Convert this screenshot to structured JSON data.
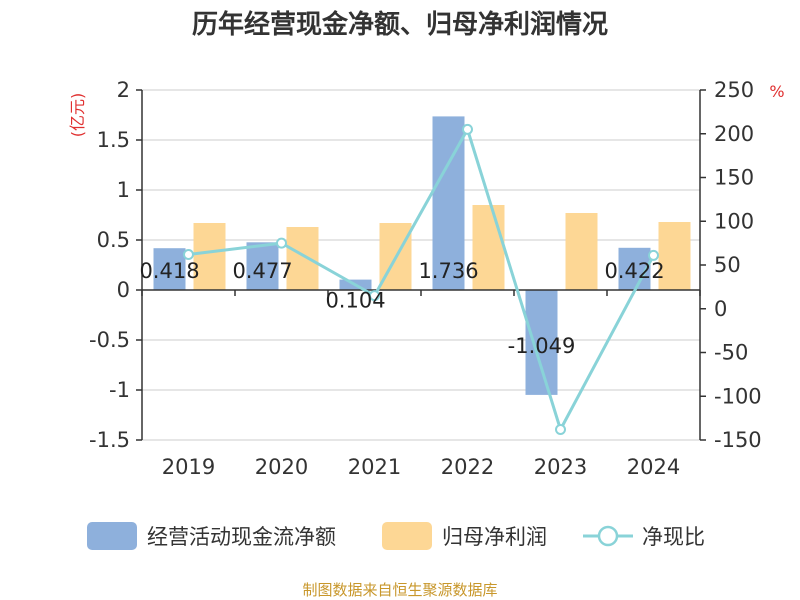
{
  "title": "历年经营现金净额、归母净利润情况",
  "source": "制图数据来自恒生聚源数据库",
  "colors": {
    "cash_flow": "#8eb0dc",
    "net_profit": "#fdd795",
    "ratio": "#89d3d8",
    "unit": "#e03030",
    "source": "#c8972b",
    "grid": "#cccccc",
    "axis": "#333333"
  },
  "chart_data": {
    "type": "bar+line",
    "categories": [
      "2019",
      "2020",
      "2021",
      "2022",
      "2023",
      "2024"
    ],
    "left_axis": {
      "unit": "(亿元)",
      "min": -1.5,
      "max": 2,
      "ticks": [
        "2",
        "1.5",
        "1",
        "0.5",
        "0",
        "-0.5",
        "-1",
        "-1.5"
      ]
    },
    "right_axis": {
      "unit": "%",
      "min": -150,
      "max": 250,
      "ticks": [
        "250",
        "200",
        "150",
        "100",
        "50",
        "0",
        "-50",
        "-100",
        "-150"
      ]
    },
    "series": [
      {
        "name": "经营活动现金流净额",
        "type": "bar",
        "axis": "left",
        "values": [
          0.418,
          0.477,
          0.104,
          1.736,
          -1.049,
          0.422
        ],
        "labels": [
          "0.418",
          "0.477",
          "0.104",
          "1.736",
          "-1.049",
          "0.422"
        ]
      },
      {
        "name": "归母净利润",
        "type": "bar",
        "axis": "left",
        "values": [
          0.67,
          0.63,
          0.67,
          0.85,
          0.77,
          0.68
        ]
      },
      {
        "name": "净现比",
        "type": "line",
        "axis": "right",
        "values": [
          62,
          75,
          15,
          205,
          -138,
          61
        ]
      }
    ]
  }
}
